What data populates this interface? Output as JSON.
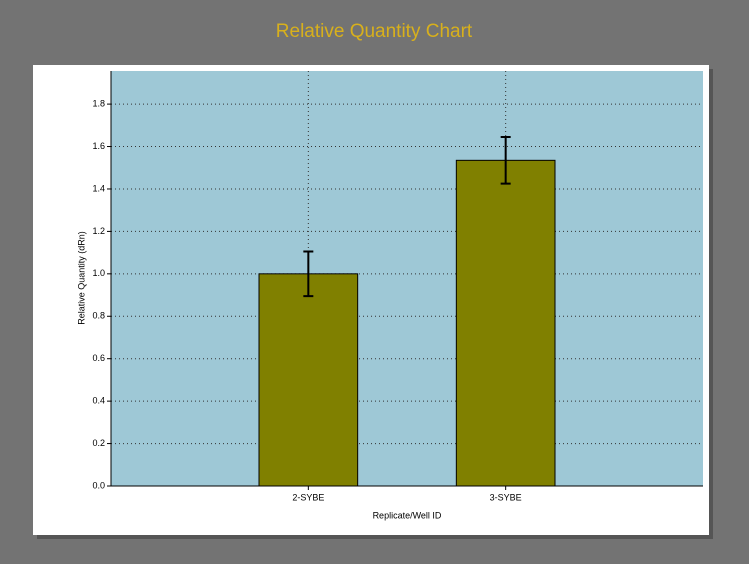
{
  "chart_data": {
    "type": "bar",
    "title": "Relative Quantity Chart",
    "x_label": "Replicate/Well ID",
    "y_label": "Relative Quantity (dRn)",
    "categories": [
      "2-SYBE",
      "3-SYBE"
    ],
    "values": [
      1.0,
      1.535
    ],
    "errors": [
      0.105,
      0.11
    ],
    "color": "#808000",
    "ylim": [
      0,
      1.956
    ],
    "yticks": [
      {
        "value": 0,
        "label": "0.0"
      },
      0.2,
      0.4,
      0.6,
      0.8,
      {
        "value": 1,
        "label": "1.0"
      },
      1.2,
      1.4,
      1.6,
      1.8
    ],
    "grid": true
  }
}
